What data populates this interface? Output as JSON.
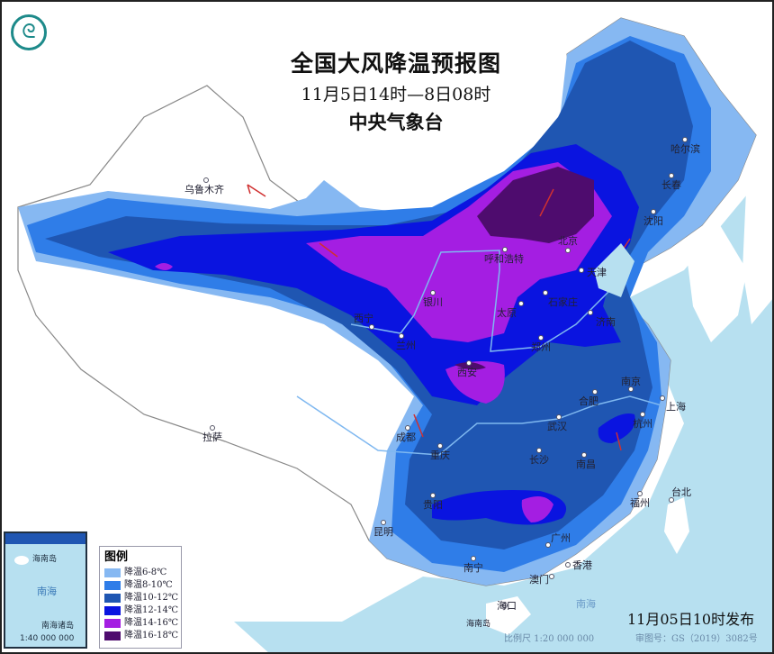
{
  "title": "全国大风降温预报图",
  "period": "11月5日14时—8日08时",
  "agency": "中央气象台",
  "logo_icon": "cma-logo-icon",
  "legend": {
    "title": "图例",
    "items": [
      {
        "label": "降温6-8℃",
        "color": "#86b8f2"
      },
      {
        "label": "降温8-10℃",
        "color": "#2f7de8"
      },
      {
        "label": "降温10-12℃",
        "color": "#1f56b2"
      },
      {
        "label": "降温12-14℃",
        "color": "#0a14e0"
      },
      {
        "label": "降温14-16℃",
        "color": "#a41ee2"
      },
      {
        "label": "降温16-18℃",
        "color": "#4e0c6e"
      }
    ]
  },
  "colors": {
    "sea": "#b7e0f0",
    "land": "#ffffff"
  },
  "cities": [
    {
      "name": "乌鲁木齐"
    },
    {
      "name": "拉萨"
    },
    {
      "name": "成都"
    },
    {
      "name": "重庆"
    },
    {
      "name": "昆明"
    },
    {
      "name": "贵阳"
    },
    {
      "name": "南宁"
    },
    {
      "name": "广州"
    },
    {
      "name": "香港"
    },
    {
      "name": "澳门"
    },
    {
      "name": "海口"
    },
    {
      "name": "长沙"
    },
    {
      "name": "南昌"
    },
    {
      "name": "武汉"
    },
    {
      "name": "合肥"
    },
    {
      "name": "南京"
    },
    {
      "name": "上海"
    },
    {
      "name": "杭州"
    },
    {
      "name": "福州"
    },
    {
      "name": "台北"
    },
    {
      "name": "郑州"
    },
    {
      "name": "西安"
    },
    {
      "name": "银川"
    },
    {
      "name": "兰州"
    },
    {
      "name": "西宁"
    },
    {
      "name": "呼和浩特"
    },
    {
      "name": "北京"
    },
    {
      "name": "天津"
    },
    {
      "name": "石家庄"
    },
    {
      "name": "太原"
    },
    {
      "name": "济南"
    },
    {
      "name": "沈阳"
    },
    {
      "name": "长春"
    },
    {
      "name": "哈尔滨"
    }
  ],
  "inset": {
    "sea_label": "南海",
    "island_label": "海南岛",
    "city_label": "海口",
    "caption": "南海诸岛",
    "scale": "1:40 000 000"
  },
  "places": {
    "hainan": "海南岛",
    "sea_label": "南海"
  },
  "footer": {
    "issued": "11月05日10时发布",
    "scale": "比例尺 1:20 000 000",
    "review": "审图号：GS（2019）3082号"
  }
}
